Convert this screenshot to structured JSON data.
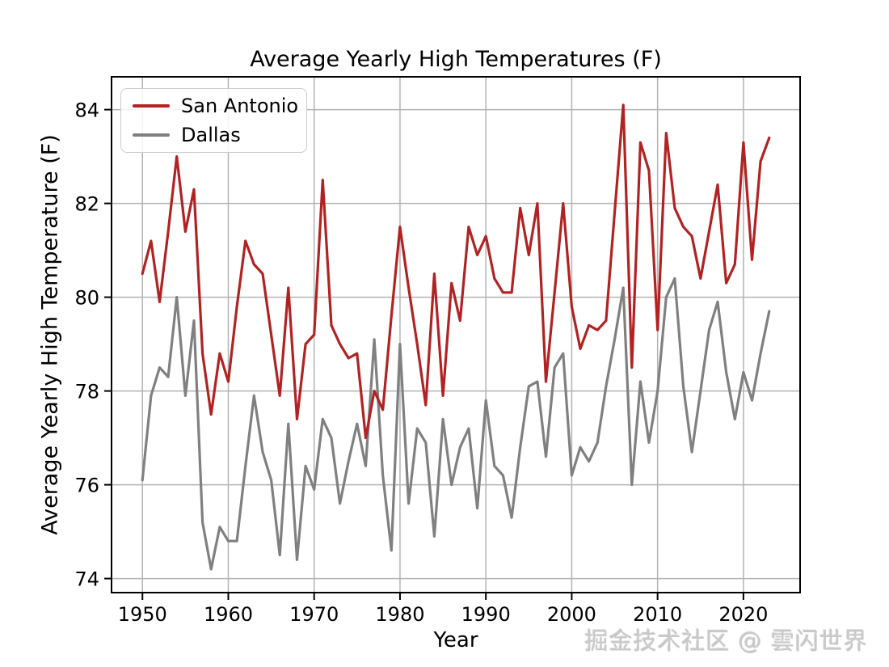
{
  "title": "Average Yearly High Temperatures (F)",
  "axes": {
    "x_label": "Year",
    "y_label": "Average Yearly High Temperature (F)",
    "x_ticks": [
      1950,
      1960,
      1970,
      1980,
      1990,
      2000,
      2010,
      2020
    ],
    "y_ticks": [
      74,
      76,
      78,
      80,
      82,
      84
    ]
  },
  "legend": {
    "entries": [
      {
        "label": "San Antonio",
        "color": "#b22222"
      },
      {
        "label": "Dallas",
        "color": "#808080"
      }
    ]
  },
  "watermark": "掘金技术社区 @ 雲闪世界",
  "colors": {
    "san_antonio": "#b22222",
    "dallas": "#808080",
    "grid": "#b3b3b3",
    "spine": "#000000"
  },
  "chart_data": {
    "type": "line",
    "title": "Average Yearly High Temperatures (F)",
    "xlabel": "Year",
    "ylabel": "Average Yearly High Temperature (F)",
    "grid": true,
    "legend_position": "upper left",
    "xlim": [
      1946.4,
      2026.6
    ],
    "ylim": [
      73.7,
      84.7
    ],
    "x": [
      1950,
      1951,
      1952,
      1953,
      1954,
      1955,
      1956,
      1957,
      1958,
      1959,
      1960,
      1961,
      1962,
      1963,
      1964,
      1965,
      1966,
      1967,
      1968,
      1969,
      1970,
      1971,
      1972,
      1973,
      1974,
      1975,
      1976,
      1977,
      1978,
      1979,
      1980,
      1981,
      1982,
      1983,
      1984,
      1985,
      1986,
      1987,
      1988,
      1989,
      1990,
      1991,
      1992,
      1993,
      1994,
      1995,
      1996,
      1997,
      1998,
      1999,
      2000,
      2001,
      2002,
      2003,
      2004,
      2005,
      2006,
      2007,
      2008,
      2009,
      2010,
      2011,
      2012,
      2013,
      2014,
      2015,
      2016,
      2017,
      2018,
      2019,
      2020,
      2021,
      2022,
      2023
    ],
    "series": [
      {
        "name": "San Antonio",
        "color": "#b22222",
        "values": [
          80.5,
          81.2,
          79.9,
          81.4,
          83.0,
          81.4,
          82.3,
          78.8,
          77.5,
          78.8,
          78.2,
          79.8,
          81.2,
          80.7,
          80.5,
          79.2,
          77.9,
          80.2,
          77.4,
          79.0,
          79.2,
          82.5,
          79.4,
          79.0,
          78.7,
          78.8,
          77.0,
          78.0,
          77.6,
          79.6,
          81.5,
          80.2,
          79.0,
          77.7,
          80.5,
          77.9,
          80.3,
          79.5,
          81.5,
          80.9,
          81.3,
          80.4,
          80.1,
          80.1,
          81.9,
          80.9,
          82.0,
          78.2,
          80.1,
          82.0,
          79.8,
          78.9,
          79.4,
          79.3,
          79.5,
          81.8,
          84.1,
          78.5,
          83.3,
          82.7,
          79.3,
          83.5,
          81.9,
          81.5,
          81.3,
          80.4,
          81.4,
          82.4,
          80.3,
          80.7,
          83.3,
          80.8,
          82.9,
          83.4
        ]
      },
      {
        "name": "Dallas",
        "color": "#808080",
        "values": [
          76.1,
          77.9,
          78.5,
          78.3,
          80.0,
          77.9,
          79.5,
          75.2,
          74.2,
          75.1,
          74.8,
          74.8,
          76.4,
          77.9,
          76.7,
          76.1,
          74.5,
          77.3,
          74.4,
          76.4,
          75.9,
          77.4,
          77.0,
          75.6,
          76.5,
          77.3,
          76.4,
          79.1,
          76.2,
          74.6,
          79.0,
          75.6,
          77.2,
          76.9,
          74.9,
          77.4,
          76.0,
          76.8,
          77.2,
          75.5,
          77.8,
          76.4,
          76.2,
          75.3,
          76.8,
          78.1,
          78.2,
          76.6,
          78.5,
          78.8,
          76.2,
          76.8,
          76.5,
          76.9,
          78.1,
          79.1,
          80.2,
          76.0,
          78.2,
          76.9,
          78.0,
          80.0,
          80.4,
          78.1,
          76.7,
          78.0,
          79.3,
          79.9,
          78.4,
          77.4,
          78.4,
          77.8,
          78.8,
          79.7
        ]
      }
    ]
  }
}
